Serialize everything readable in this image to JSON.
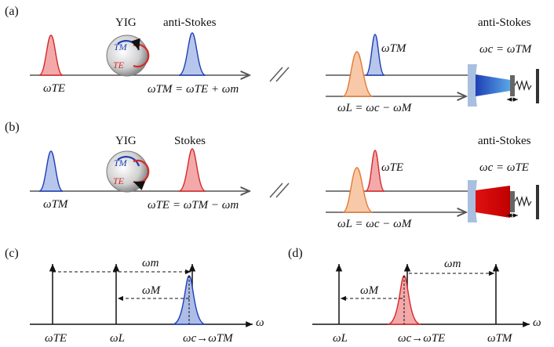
{
  "panels": {
    "a": "(a)",
    "b": "(b)",
    "c": "(c)",
    "d": "(d)"
  },
  "a": {
    "yig": "YIG",
    "tm": "TM",
    "te": "TE",
    "out_label": "anti-Stokes",
    "right_label": "anti-Stokes",
    "input_freq": "ωTE",
    "eq_main": "ωTM = ωTE + ωm",
    "pump_eq": "ωL = ωc − ωM",
    "cav_peak": "ωTM",
    "cav_cond": "ωc = ωTM"
  },
  "b": {
    "yig": "YIG",
    "tm": "TM",
    "te": "TE",
    "out_label": "Stokes",
    "right_label": "anti-Stokes",
    "input_freq": "ωTM",
    "eq_main": "ωTE = ωTM − ωm",
    "pump_eq": "ωL = ωc − ωM",
    "cav_peak": "ωTE",
    "cav_cond": "ωc = ωTE"
  },
  "c": {
    "ticks": [
      "ωTE",
      "ωL",
      "ωc→ωTM"
    ],
    "arrow1": "ωm",
    "arrow2": "ωM",
    "axis": "ω"
  },
  "d": {
    "ticks": [
      "ωL",
      "ωc→ωTE",
      "ωTM"
    ],
    "arrow1": "ωm",
    "arrow2": "ωM",
    "axis": "ω"
  },
  "colors": {
    "red": "#d42a2a",
    "blue": "#1f3fb5",
    "orange": "#e07b39",
    "mirror": "#a9bfe0"
  }
}
